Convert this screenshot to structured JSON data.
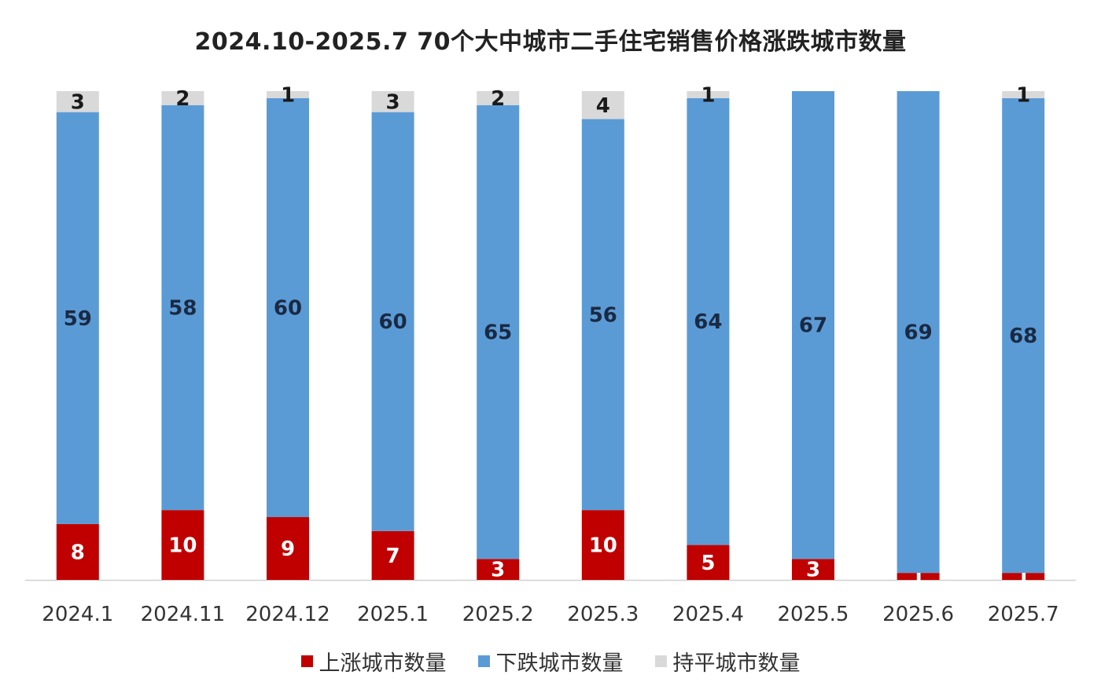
{
  "chart_data": {
    "type": "bar",
    "stacked": true,
    "title": "2024.10-2025.7  70个大中城市二手住宅销售价格涨跌城市数量",
    "categories": [
      "2024.1",
      "2024.11",
      "2024.12",
      "2025.1",
      "2025.2",
      "2025.3",
      "2025.4",
      "2025.5",
      "2025.6",
      "2025.7"
    ],
    "series": [
      {
        "name": "上涨城市数量",
        "color": "#C00000",
        "label_color": "#ffffff",
        "values": [
          8,
          10,
          9,
          7,
          3,
          10,
          5,
          3,
          1,
          1
        ]
      },
      {
        "name": "下跌城市数量",
        "color": "#5B9BD5",
        "label_color": "#1a2a44",
        "values": [
          59,
          58,
          60,
          60,
          65,
          56,
          64,
          67,
          69,
          68
        ]
      },
      {
        "name": "持平城市数量",
        "color": "#D9D9D9",
        "label_color": "#1a1a1a",
        "values": [
          3,
          2,
          1,
          3,
          2,
          4,
          1,
          0,
          0,
          1
        ]
      }
    ],
    "ylim": [
      0,
      70
    ],
    "grid": false,
    "legend": "bottom",
    "xlabel": "",
    "ylabel": ""
  }
}
